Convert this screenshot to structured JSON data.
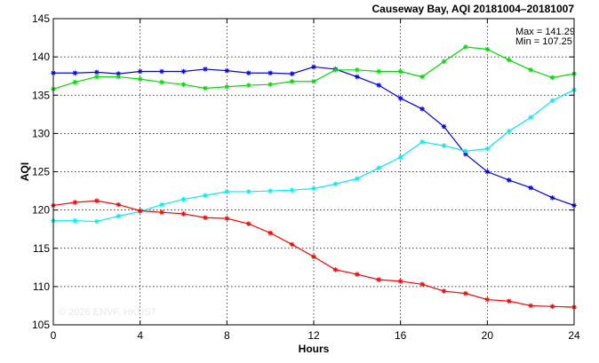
{
  "chart_data": {
    "type": "line",
    "title": "Causeway Bay, AQI 20181004–20181007",
    "xlabel": "Hours",
    "ylabel": "AQI",
    "xlim": [
      0,
      24
    ],
    "ylim": [
      105,
      145
    ],
    "xticks": [
      0,
      4,
      8,
      12,
      16,
      20,
      24
    ],
    "yticks": [
      105,
      110,
      115,
      120,
      125,
      130,
      135,
      140,
      145
    ],
    "grid": true,
    "stats": {
      "max_text": "Max = 141.29",
      "min_text": "Min = 107.25"
    },
    "watermark": "© 2026  ENVF, HKUST",
    "x": [
      0,
      1,
      2,
      3,
      4,
      5,
      6,
      7,
      8,
      9,
      10,
      11,
      12,
      13,
      14,
      15,
      16,
      17,
      18,
      19,
      20,
      21,
      22,
      23,
      24
    ],
    "series": [
      {
        "color": "#0000ff",
        "values": [
          137.9,
          137.9,
          138.0,
          137.8,
          138.1,
          138.1,
          138.1,
          138.4,
          138.2,
          137.9,
          137.9,
          137.8,
          138.7,
          138.4,
          137.4,
          136.3,
          134.6,
          133.2,
          130.9,
          127.3,
          125.0,
          123.9,
          122.9,
          121.6,
          120.6
        ]
      },
      {
        "color": "#00dd00",
        "values": [
          135.8,
          136.7,
          137.4,
          137.4,
          137.1,
          136.7,
          136.4,
          135.9,
          136.1,
          136.3,
          136.4,
          136.8,
          136.8,
          138.3,
          138.3,
          138.1,
          138.1,
          137.4,
          139.4,
          141.3,
          141.0,
          139.6,
          138.3,
          137.3,
          137.8
        ]
      },
      {
        "color": "#00eeee",
        "values": [
          118.6,
          118.6,
          118.5,
          119.2,
          119.8,
          120.7,
          121.4,
          121.9,
          122.4,
          122.4,
          122.5,
          122.6,
          122.8,
          123.4,
          124.1,
          125.5,
          126.9,
          128.9,
          128.4,
          127.7,
          128.0,
          130.3,
          132.1,
          134.3,
          135.7
        ]
      },
      {
        "color": "#ff0000",
        "values": [
          120.6,
          121.0,
          121.2,
          120.7,
          119.9,
          119.7,
          119.5,
          119.0,
          118.9,
          118.2,
          117.0,
          115.5,
          113.9,
          112.2,
          111.6,
          110.9,
          110.7,
          110.3,
          109.4,
          109.1,
          108.3,
          108.1,
          107.5,
          107.4,
          107.3
        ]
      }
    ]
  }
}
